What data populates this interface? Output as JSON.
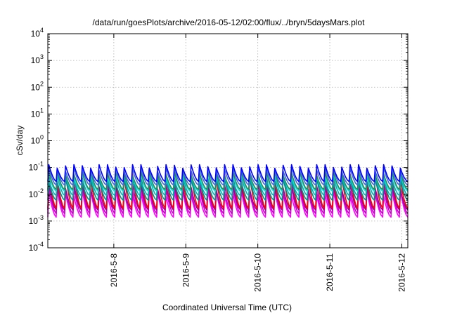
{
  "chart_data": {
    "type": "line",
    "title": "/data/run/goesPlots/archive/2016-05-12/02:00/flux/../bryn/5daysMars.plot",
    "xlabel": "Coordinated Universal Time (UTC)",
    "ylabel": "cSv/day",
    "x_scale": "time",
    "y_scale": "log",
    "xlim": [
      "2016-05-07 02:00",
      "2016-05-12 02:00"
    ],
    "ylim": [
      0.0001,
      10000
    ],
    "x_ticks": [
      {
        "value": "2016-05-08 00:00",
        "label": "2016-5-8"
      },
      {
        "value": "2016-05-09 00:00",
        "label": "2016-5-9"
      },
      {
        "value": "2016-05-10 00:00",
        "label": "2016-5-10"
      },
      {
        "value": "2016-05-11 00:00",
        "label": "2016-5-11"
      },
      {
        "value": "2016-05-12 00:00",
        "label": "2016-5-12"
      }
    ],
    "y_ticks": [
      {
        "value": 0.0001,
        "base": "10",
        "exp": "-4"
      },
      {
        "value": 0.001,
        "base": "10",
        "exp": "-3"
      },
      {
        "value": 0.01,
        "base": "10",
        "exp": "-2"
      },
      {
        "value": 0.1,
        "base": "10",
        "exp": "-1"
      },
      {
        "value": 1,
        "base": "10",
        "exp": "0"
      },
      {
        "value": 10,
        "base": "10",
        "exp": "1"
      },
      {
        "value": 100,
        "base": "10",
        "exp": "2"
      },
      {
        "value": 1000,
        "base": "10",
        "exp": "3"
      },
      {
        "value": 10000,
        "base": "10",
        "exp": "4"
      }
    ],
    "grid": true,
    "legend": "none",
    "pattern": {
      "cycles": 43,
      "cycle_hours": 2.79,
      "description": "Repeating sawtooth: sharp rise to a peak followed by a decay over each cycle"
    },
    "series": [
      {
        "color": "#ff00ff",
        "peak": 0.012,
        "trough": 0.0014
      },
      {
        "color": "#cc00cc",
        "peak": 0.017,
        "trough": 0.0019
      },
      {
        "color": "#990099",
        "peak": 0.022,
        "trough": 0.0026
      },
      {
        "color": "#ff0000",
        "peak": 0.05,
        "trough": 0.003
      },
      {
        "color": "#008b8b",
        "peak": 0.035,
        "trough": 0.006
      },
      {
        "color": "#00b0b0",
        "peak": 0.045,
        "trough": 0.009
      },
      {
        "color": "#00e0e0",
        "peak": 0.055,
        "trough": 0.013
      },
      {
        "color": "#2e8b57",
        "peak": 0.065,
        "trough": 0.015
      },
      {
        "color": "#4169e1",
        "peak": 0.09,
        "trough": 0.022
      },
      {
        "color": "#0000ff",
        "peak": 0.12,
        "trough": 0.03
      }
    ]
  }
}
